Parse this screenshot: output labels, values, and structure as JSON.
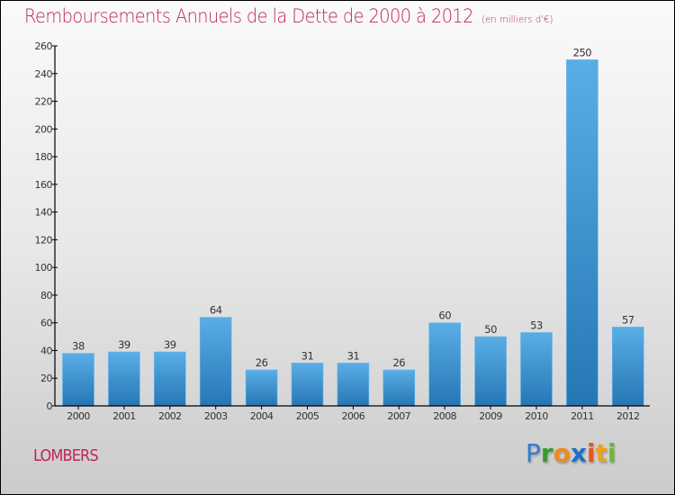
{
  "header": {
    "title": "Remboursements Annuels de la Dette de 2000 à 2012",
    "unit_note": "(en milliers d'€)"
  },
  "footer": {
    "commune": "LOMBERS",
    "logo_letters": [
      {
        "char": "P",
        "color": "#2e7fd0"
      },
      {
        "char": "r",
        "color": "#3a9a2e"
      },
      {
        "char": "o",
        "color": "#f08a1c"
      },
      {
        "char": "x",
        "color": "#1e6fc8"
      },
      {
        "char": "i",
        "color": "#e8541c"
      },
      {
        "char": "t",
        "color": "#f0a020"
      },
      {
        "char": "i",
        "color": "#6ab82e"
      }
    ]
  },
  "colors": {
    "title": "#c0245c",
    "bar_top": "#5aaee6",
    "bar_bottom": "#2676b4",
    "axis": "#000000",
    "label": "#333333"
  },
  "chart_data": {
    "type": "bar",
    "title": "Remboursements Annuels de la Dette de 2000 à 2012",
    "subtitle": "(en milliers d'€)",
    "xlabel": "",
    "ylabel": "",
    "categories": [
      "2000",
      "2001",
      "2002",
      "2003",
      "2004",
      "2005",
      "2006",
      "2007",
      "2008",
      "2009",
      "2010",
      "2011",
      "2012"
    ],
    "values": [
      38,
      39,
      39,
      64,
      26,
      31,
      31,
      26,
      60,
      50,
      53,
      250,
      57
    ],
    "ylim": [
      0,
      260
    ],
    "yticks": [
      0,
      20,
      40,
      60,
      80,
      100,
      120,
      140,
      160,
      180,
      200,
      220,
      240,
      260
    ],
    "grid": false,
    "legend": "none",
    "data_labels": true
  }
}
